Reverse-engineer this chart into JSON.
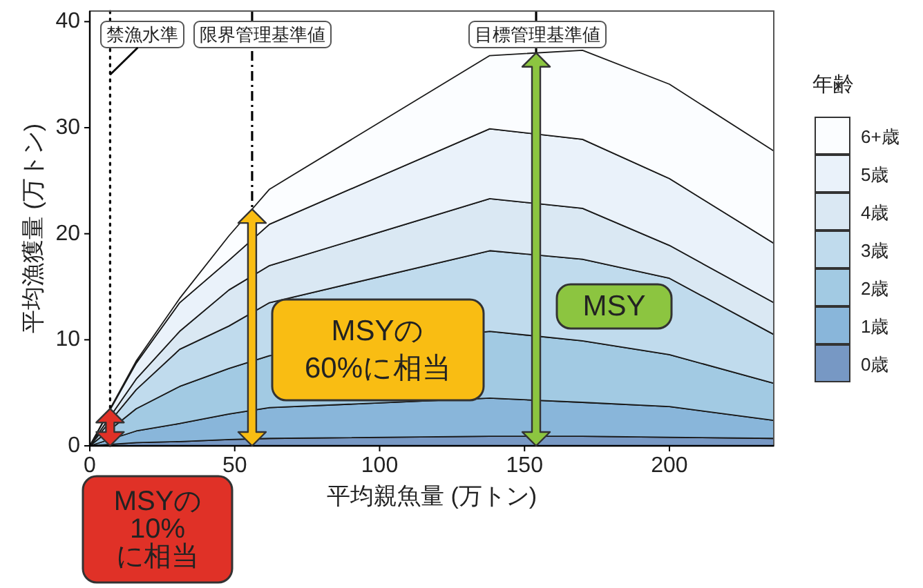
{
  "chart_data": {
    "type": "area",
    "stacked": true,
    "xlabel": "平均親魚量 (万トン)",
    "ylabel": "平均漁獲量 (万トン)",
    "legend_title": "年齢",
    "legend": "right",
    "x": [
      0,
      16,
      31,
      48,
      62,
      138,
      170,
      200,
      236
    ],
    "xlim": [
      0,
      236
    ],
    "ylim": [
      0,
      41
    ],
    "xticks": [
      0,
      50,
      100,
      150,
      200
    ],
    "yticks": [
      0,
      10,
      20,
      30,
      40
    ],
    "grid": false,
    "series": [
      {
        "name": "0歳",
        "color": "#7798c4",
        "values": [
          0,
          0.3,
          0.4,
          0.6,
          0.7,
          0.9,
          0.9,
          0.8,
          0.7
        ]
      },
      {
        "name": "1歳",
        "color": "#89b6da",
        "values": [
          0,
          1.1,
          1.7,
          2.4,
          2.9,
          3.6,
          3.2,
          2.9,
          1.7
        ]
      },
      {
        "name": "2歳",
        "color": "#a2cae3",
        "values": [
          0,
          2.1,
          3.5,
          4.3,
          4.9,
          6.3,
          5.8,
          4.9,
          3.5
        ]
      },
      {
        "name": "3歳",
        "color": "#c0dbed",
        "values": [
          0,
          1.8,
          3.5,
          4.0,
          5.0,
          7.6,
          7.7,
          7.2,
          4.6
        ]
      },
      {
        "name": "4歳",
        "color": "#dae8f3",
        "values": [
          0,
          1.0,
          1.7,
          3.4,
          3.5,
          4.9,
          4.8,
          3.1,
          3.0
        ]
      },
      {
        "name": "5歳",
        "color": "#eaf2fa",
        "values": [
          0,
          1.5,
          2.7,
          2.8,
          3.9,
          6.6,
          6.5,
          6.3,
          5.6
        ]
      },
      {
        "name": "6+歳",
        "color": "#fbfdff",
        "values": [
          0,
          0.2,
          0.4,
          2.3,
          3.3,
          6.9,
          8.4,
          8.9,
          8.7
        ]
      }
    ],
    "ref_lines": [
      {
        "axis": "x",
        "value": 7,
        "label": "禁漁水準",
        "line_style": "dotted",
        "color": "#000000"
      },
      {
        "axis": "x",
        "value": 56,
        "label": "限界管理基準値",
        "line_style": "dashdot",
        "color": "#000000"
      },
      {
        "axis": "x",
        "value": 154,
        "label": "目標管理基準値",
        "line_style": "solid",
        "color": "#000000"
      }
    ],
    "annotations": [
      "MSYの\n10%\nに相当",
      "MSYの\n60%に相当",
      "MSY"
    ]
  }
}
